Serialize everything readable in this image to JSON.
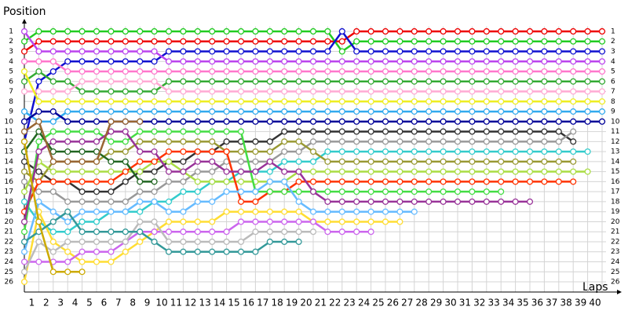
{
  "chart_data": {
    "type": "line",
    "y_label": "Position",
    "x_label": "Laps",
    "x": [
      0,
      1,
      2,
      3,
      4,
      5,
      6,
      7,
      8,
      9,
      10,
      11,
      12,
      13,
      14,
      15,
      16,
      17,
      18,
      19,
      20,
      21,
      22,
      23,
      24,
      25,
      26,
      27,
      28,
      29,
      30,
      31,
      32,
      33,
      34,
      35,
      36,
      37,
      38,
      39,
      40
    ],
    "xlim": [
      0,
      40
    ],
    "xticks": [
      1,
      2,
      3,
      4,
      5,
      6,
      7,
      8,
      9,
      10,
      11,
      12,
      13,
      14,
      15,
      16,
      17,
      18,
      19,
      20,
      21,
      22,
      23,
      24,
      25,
      26,
      27,
      28,
      29,
      30,
      31,
      32,
      33,
      34,
      35,
      36,
      37,
      38,
      39,
      40
    ],
    "ylim": [
      0.5,
      26.5
    ],
    "y_inverted": true,
    "yticks": [
      1,
      2,
      3,
      4,
      5,
      6,
      7,
      8,
      9,
      10,
      11,
      12,
      13,
      14,
      15,
      16,
      17,
      18,
      19,
      20,
      21,
      22,
      23,
      24,
      25,
      26
    ],
    "grid": true,
    "markers": true,
    "series": [
      {
        "color": "#ee0000",
        "values": [
          3,
          2,
          2,
          2,
          2,
          2,
          2,
          2,
          2,
          2,
          2,
          2,
          2,
          2,
          2,
          2,
          2,
          2,
          2,
          2,
          2,
          2,
          2,
          1,
          1,
          1,
          1,
          1,
          1,
          1,
          1,
          1,
          1,
          1,
          1,
          1,
          1,
          1,
          1,
          1,
          1
        ]
      },
      {
        "color": "#22cc22",
        "values": [
          2,
          1,
          1,
          1,
          1,
          1,
          1,
          1,
          1,
          1,
          1,
          1,
          1,
          1,
          1,
          1,
          1,
          1,
          1,
          1,
          1,
          1,
          3,
          2,
          2,
          2,
          2,
          2,
          2,
          2,
          2,
          2,
          2,
          2,
          2,
          2,
          2,
          2,
          2,
          2,
          2
        ]
      },
      {
        "color": "#1010d0",
        "values": [
          12,
          6,
          5,
          4,
          4,
          4,
          4,
          4,
          4,
          4,
          3,
          3,
          3,
          3,
          3,
          3,
          3,
          3,
          3,
          3,
          3,
          3,
          1,
          3,
          3,
          3,
          3,
          3,
          3,
          3,
          3,
          3,
          3,
          3,
          3,
          3,
          3,
          3,
          3,
          3,
          3
        ]
      },
      {
        "color": "#bb44ee",
        "values": [
          1,
          3,
          3,
          3,
          3,
          3,
          3,
          3,
          3,
          3,
          4,
          4,
          4,
          4,
          4,
          4,
          4,
          4,
          4,
          4,
          4,
          4,
          4,
          4,
          4,
          4,
          4,
          4,
          4,
          4,
          4,
          4,
          4,
          4,
          4,
          4,
          4,
          4,
          4,
          4,
          4
        ]
      },
      {
        "color": "#ff77cc",
        "values": [
          4,
          4,
          4,
          5,
          5,
          5,
          5,
          5,
          5,
          5,
          5,
          5,
          5,
          5,
          5,
          5,
          5,
          5,
          5,
          5,
          5,
          5,
          5,
          5,
          5,
          5,
          5,
          5,
          5,
          5,
          5,
          5,
          5,
          5,
          5,
          5,
          5,
          5,
          5,
          5,
          5
        ]
      },
      {
        "color": "#33aa33",
        "values": [
          6,
          5,
          6,
          6,
          7,
          7,
          7,
          7,
          7,
          7,
          6,
          6,
          6,
          6,
          6,
          6,
          6,
          6,
          6,
          6,
          6,
          6,
          6,
          6,
          6,
          6,
          6,
          6,
          6,
          6,
          6,
          6,
          6,
          6,
          6,
          6,
          6,
          6,
          6,
          6,
          6
        ]
      },
      {
        "color": "#ffaad4",
        "values": [
          7,
          7,
          7,
          7,
          6,
          6,
          6,
          6,
          6,
          6,
          7,
          7,
          7,
          7,
          7,
          7,
          7,
          7,
          7,
          7,
          7,
          7,
          7,
          7,
          7,
          7,
          7,
          7,
          7,
          7,
          7,
          7,
          7,
          7,
          7,
          7,
          7,
          7,
          7,
          7,
          7
        ]
      },
      {
        "color": "#eeee22",
        "values": [
          5,
          8,
          8,
          8,
          8,
          8,
          8,
          8,
          8,
          8,
          8,
          8,
          8,
          8,
          8,
          8,
          8,
          8,
          8,
          8,
          8,
          8,
          8,
          8,
          8,
          8,
          8,
          8,
          8,
          8,
          8,
          8,
          8,
          8,
          8,
          8,
          8,
          8,
          8,
          8,
          8
        ]
      },
      {
        "color": "#33aaee",
        "values": [
          9,
          10,
          10,
          9,
          9,
          9,
          9,
          9,
          9,
          9,
          9,
          9,
          9,
          9,
          9,
          9,
          9,
          9,
          9,
          9,
          9,
          9,
          9,
          9,
          9,
          9,
          9,
          9,
          9,
          9,
          9,
          9,
          9,
          9,
          9,
          9,
          9,
          9,
          9,
          9,
          9
        ]
      },
      {
        "color": "#000099",
        "values": [
          10,
          9,
          9,
          10,
          10,
          10,
          10,
          10,
          10,
          10,
          10,
          10,
          10,
          10,
          10,
          10,
          10,
          10,
          10,
          10,
          10,
          10,
          10,
          10,
          10,
          10,
          10,
          10,
          10,
          10,
          10,
          10,
          10,
          10,
          10,
          10,
          10,
          10,
          10,
          10,
          10
        ]
      },
      {
        "color": "#333333",
        "values": [
          14,
          15,
          16,
          16,
          17,
          17,
          17,
          16,
          15,
          15,
          14,
          14,
          13,
          13,
          12,
          12,
          12,
          12,
          11,
          11,
          11,
          11,
          11,
          11,
          11,
          11,
          11,
          11,
          11,
          11,
          11,
          11,
          11,
          11,
          11,
          11,
          11,
          11,
          12,
          null,
          null
        ]
      },
      {
        "color": "#999999",
        "values": [
          16,
          17,
          17,
          18,
          18,
          18,
          18,
          18,
          17,
          17,
          16,
          16,
          15,
          15,
          14,
          14,
          14,
          14,
          13,
          13,
          12,
          12,
          12,
          12,
          12,
          12,
          12,
          12,
          12,
          12,
          12,
          12,
          12,
          12,
          12,
          12,
          12,
          12,
          11,
          null,
          null
        ]
      },
      {
        "color": "#33cccc",
        "values": [
          18,
          20,
          21,
          21,
          20,
          20,
          19,
          19,
          19,
          18,
          18,
          17,
          17,
          16,
          16,
          15,
          15,
          15,
          14,
          14,
          14,
          13,
          13,
          13,
          13,
          13,
          13,
          13,
          13,
          13,
          13,
          13,
          13,
          13,
          13,
          13,
          13,
          13,
          13,
          13,
          null
        ]
      },
      {
        "color": "#999933",
        "values": [
          15,
          16,
          14,
          14,
          14,
          14,
          13,
          13,
          12,
          12,
          12,
          12,
          12,
          12,
          13,
          13,
          13,
          13,
          12,
          12,
          13,
          14,
          14,
          14,
          14,
          14,
          14,
          14,
          14,
          14,
          14,
          14,
          14,
          14,
          14,
          14,
          14,
          14,
          14,
          null,
          null
        ]
      },
      {
        "color": "#aadd44",
        "values": [
          17,
          14,
          15,
          15,
          15,
          15,
          15,
          15,
          15,
          14,
          14,
          15,
          16,
          16,
          16,
          16,
          16,
          16,
          16,
          15,
          15,
          15,
          15,
          15,
          15,
          15,
          15,
          15,
          15,
          15,
          15,
          15,
          15,
          15,
          15,
          15,
          15,
          15,
          15,
          15,
          null
        ]
      },
      {
        "color": "#ff3300",
        "values": [
          19,
          16,
          16,
          16,
          16,
          16,
          16,
          15,
          14,
          14,
          13,
          13,
          13,
          13,
          13,
          18,
          18,
          17,
          17,
          16,
          16,
          16,
          16,
          16,
          16,
          16,
          16,
          16,
          16,
          16,
          16,
          16,
          16,
          16,
          16,
          16,
          16,
          16,
          16,
          null,
          null
        ]
      },
      {
        "color": "#44dd44",
        "values": [
          21,
          12,
          11,
          11,
          11,
          11,
          12,
          12,
          11,
          11,
          11,
          11,
          11,
          11,
          11,
          11,
          17,
          17,
          17,
          17,
          17,
          17,
          17,
          17,
          17,
          17,
          17,
          17,
          17,
          17,
          17,
          17,
          17,
          17,
          null,
          null,
          null,
          null,
          null,
          null,
          null
        ]
      },
      {
        "color": "#993399",
        "values": [
          20,
          13,
          12,
          12,
          12,
          12,
          11,
          11,
          13,
          13,
          15,
          15,
          14,
          14,
          15,
          15,
          15,
          14,
          15,
          15,
          17,
          18,
          18,
          18,
          18,
          18,
          18,
          18,
          18,
          18,
          18,
          18,
          18,
          18,
          18,
          18,
          null,
          null,
          null,
          null,
          null
        ]
      },
      {
        "color": "#66bbff",
        "values": [
          23,
          18,
          19,
          20,
          19,
          19,
          19,
          19,
          18,
          18,
          19,
          19,
          18,
          18,
          17,
          17,
          17,
          16,
          16,
          18,
          19,
          19,
          19,
          19,
          19,
          19,
          19,
          19,
          null,
          null,
          null,
          null,
          null,
          null,
          null,
          null,
          null,
          null,
          null,
          null,
          null
        ]
      },
      {
        "color": "#ffdd33",
        "values": [
          26,
          19,
          22,
          23,
          24,
          24,
          24,
          23,
          22,
          21,
          20,
          20,
          20,
          20,
          19,
          19,
          19,
          19,
          19,
          19,
          20,
          20,
          20,
          20,
          20,
          20,
          20,
          null,
          null,
          null,
          null,
          null,
          null,
          null,
          null,
          null,
          null,
          null,
          null,
          null,
          null
        ]
      },
      {
        "color": "#cc66ee",
        "values": [
          24,
          24,
          24,
          24,
          23,
          23,
          23,
          22,
          21,
          21,
          21,
          21,
          21,
          21,
          21,
          20,
          20,
          20,
          20,
          20,
          20,
          21,
          21,
          21,
          21,
          null,
          null,
          null,
          null,
          null,
          null,
          null,
          null,
          null,
          null,
          null,
          null,
          null,
          null,
          null,
          null
        ]
      },
      {
        "color": "#bbbbbb",
        "values": [
          25,
          22,
          23,
          22,
          22,
          22,
          22,
          22,
          20,
          20,
          22,
          22,
          22,
          22,
          22,
          22,
          21,
          21,
          21,
          21,
          21,
          null,
          null,
          null,
          null,
          null,
          null,
          null,
          null,
          null,
          null,
          null,
          null,
          null,
          null,
          null,
          null,
          null,
          null,
          null,
          null
        ]
      },
      {
        "color": "#339999",
        "values": [
          22,
          21,
          20,
          19,
          21,
          21,
          21,
          21,
          21,
          22,
          23,
          23,
          23,
          23,
          23,
          23,
          23,
          22,
          22,
          22,
          null,
          null,
          null,
          null,
          null,
          null,
          null,
          null,
          null,
          null,
          null,
          null,
          null,
          null,
          null,
          null,
          null,
          null,
          null,
          null,
          null
        ]
      },
      {
        "color": "#226622",
        "values": [
          13,
          11,
          13,
          13,
          13,
          13,
          14,
          14,
          16,
          16,
          null,
          null,
          null,
          null,
          null,
          null,
          null,
          null,
          null,
          null,
          null,
          null,
          null,
          null,
          null,
          null,
          null,
          null,
          null,
          null,
          null,
          null,
          null,
          null,
          null,
          null,
          null,
          null,
          null,
          null,
          null
        ]
      },
      {
        "color": "#996633",
        "values": [
          11,
          10,
          14,
          14,
          14,
          14,
          10,
          10,
          10,
          null,
          null,
          null,
          null,
          null,
          null,
          null,
          null,
          null,
          null,
          null,
          null,
          null,
          null,
          null,
          null,
          null,
          null,
          null,
          null,
          null,
          null,
          null,
          null,
          null,
          null,
          null,
          null,
          null,
          null,
          null,
          null
        ]
      },
      {
        "color": "#ccaa00",
        "values": [
          12,
          20,
          25,
          25,
          25,
          null,
          null,
          null,
          null,
          null,
          null,
          null,
          null,
          null,
          null,
          null,
          null,
          null,
          null,
          null,
          null,
          null,
          null,
          null,
          null,
          null,
          null,
          null,
          null,
          null,
          null,
          null,
          null,
          null,
          null,
          null,
          null,
          null,
          null,
          null,
          null
        ]
      }
    ]
  }
}
